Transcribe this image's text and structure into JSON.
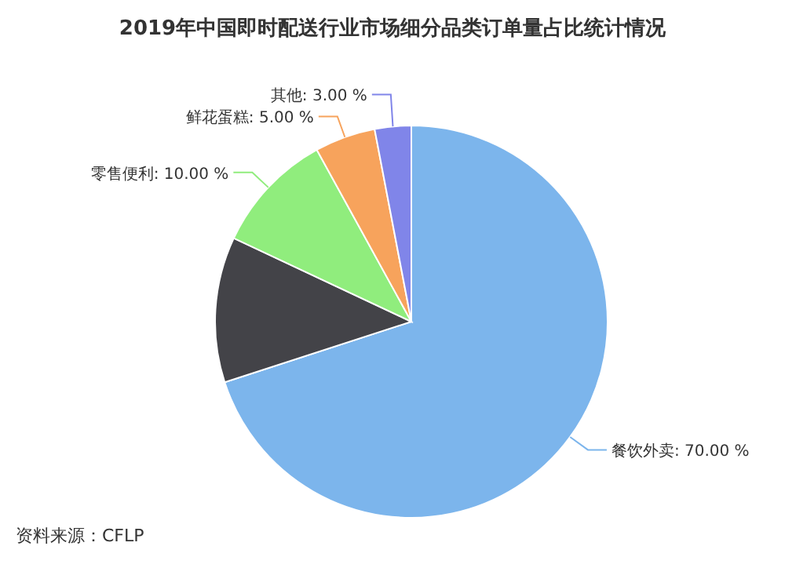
{
  "chart_data": {
    "type": "pie",
    "title": "2019年中国即时配送行业市场细分品类订单量占比统计情况",
    "categories": [
      "餐饮外卖",
      null,
      "零售便利",
      "鲜花蛋糕",
      "其他"
    ],
    "values": [
      70,
      12,
      10,
      5,
      3
    ],
    "colors": [
      "#7cb5ec",
      "#434348",
      "#90ed7d",
      "#f7a35c",
      "#8085e9"
    ],
    "value_labels": [
      "70.00 %",
      null,
      "10.00 %",
      "5.00 %",
      "3.00 %"
    ],
    "annotations": [
      "资料来源：CFLP"
    ]
  }
}
